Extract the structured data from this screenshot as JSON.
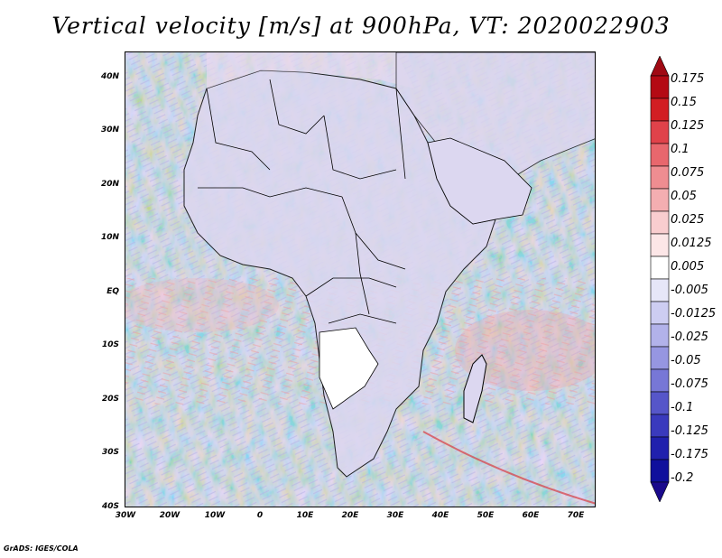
{
  "title": "Vertical velocity [m/s] at 900hPa, VT: 2020022903",
  "footer": "GrADS: IGES/COLA",
  "map": {
    "region": "Africa",
    "lat_ticks": [
      "40N",
      "30N",
      "20N",
      "10N",
      "EQ",
      "10S",
      "20S",
      "30S",
      "40S"
    ],
    "lon_ticks": [
      "30W",
      "20W",
      "10W",
      "0",
      "10E",
      "20E",
      "30E",
      "40E",
      "50E",
      "60E",
      "70E"
    ],
    "lat_range": [
      -40,
      45
    ],
    "lon_range": [
      -30,
      75
    ]
  },
  "colorbar": {
    "labels": [
      "0.175",
      "0.15",
      "0.125",
      "0.1",
      "0.075",
      "0.05",
      "0.025",
      "0.0125",
      "0.005",
      "-0.005",
      "-0.0125",
      "-0.025",
      "-0.05",
      "-0.075",
      "-0.1",
      "-0.125",
      "-0.175",
      "-0.2"
    ],
    "colors": [
      "#b40a14",
      "#d21e23",
      "#e0424a",
      "#e8676d",
      "#ef8d91",
      "#f4aeb1",
      "#f9cdcf",
      "#fce6e7",
      "#ffffff",
      "#e6e6f8",
      "#cdcdf2",
      "#b2b2ea",
      "#9696e1",
      "#7777d6",
      "#5656c9",
      "#3a3abd",
      "#2020ad",
      "#10109c"
    ],
    "top_arrow_color": "#a00a14",
    "bottom_arrow_color": "#1a0a8c"
  }
}
